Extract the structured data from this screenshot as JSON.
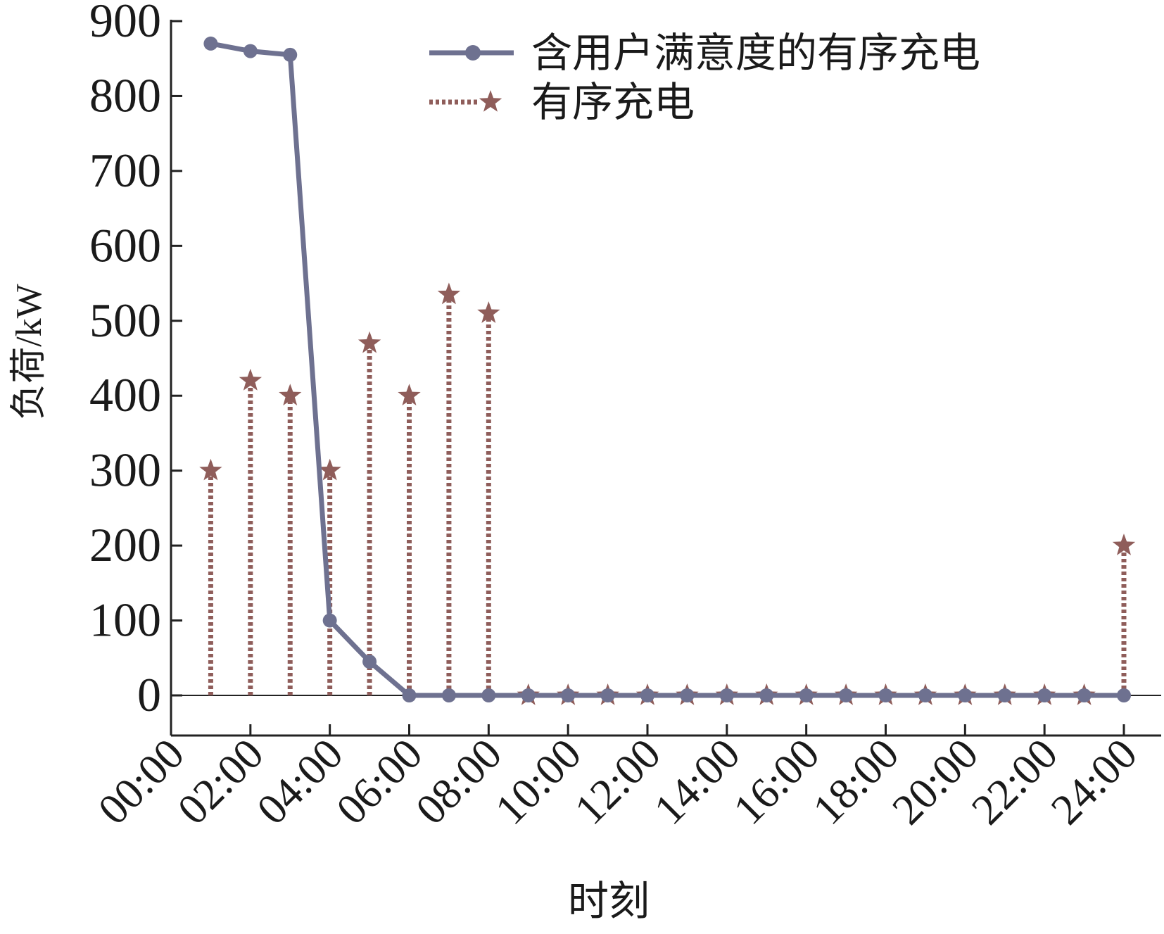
{
  "chart_data": {
    "type": "line",
    "xlabel": "时刻",
    "ylabel": "负荷/kW",
    "ylim": [
      -50,
      900
    ],
    "xlim": [
      0,
      24
    ],
    "y_ticks": [
      0,
      100,
      200,
      300,
      400,
      500,
      600,
      700,
      800,
      900
    ],
    "x_ticks": [
      0,
      2,
      4,
      6,
      8,
      10,
      12,
      14,
      16,
      18,
      20,
      22,
      24
    ],
    "x_tick_labels": [
      "00:00",
      "02:00",
      "04:00",
      "06:00",
      "08:00",
      "10:00",
      "12:00",
      "14:00",
      "16:00",
      "18:00",
      "20:00",
      "22:00",
      "24:00"
    ],
    "x": [
      1,
      2,
      3,
      4,
      5,
      6,
      7,
      8,
      9,
      10,
      11,
      12,
      13,
      14,
      15,
      16,
      17,
      18,
      19,
      20,
      21,
      22,
      23,
      24
    ],
    "series": [
      {
        "name": "含用户满意度的有序充电",
        "style": "solid line with circle markers",
        "color": "#6e7190",
        "values": [
          870,
          860,
          855,
          100,
          45,
          0,
          0,
          0,
          0,
          0,
          0,
          0,
          0,
          0,
          0,
          0,
          0,
          0,
          0,
          0,
          0,
          0,
          0,
          0
        ]
      },
      {
        "name": "有序充电",
        "style": "dotted stems with star markers",
        "color": "#8f5d5a",
        "values": [
          300,
          420,
          400,
          300,
          470,
          400,
          535,
          510,
          0,
          0,
          0,
          0,
          0,
          0,
          0,
          0,
          0,
          0,
          0,
          0,
          0,
          0,
          0,
          200
        ]
      }
    ],
    "legend_position": "top-right",
    "grid": false,
    "zero_line": true
  }
}
